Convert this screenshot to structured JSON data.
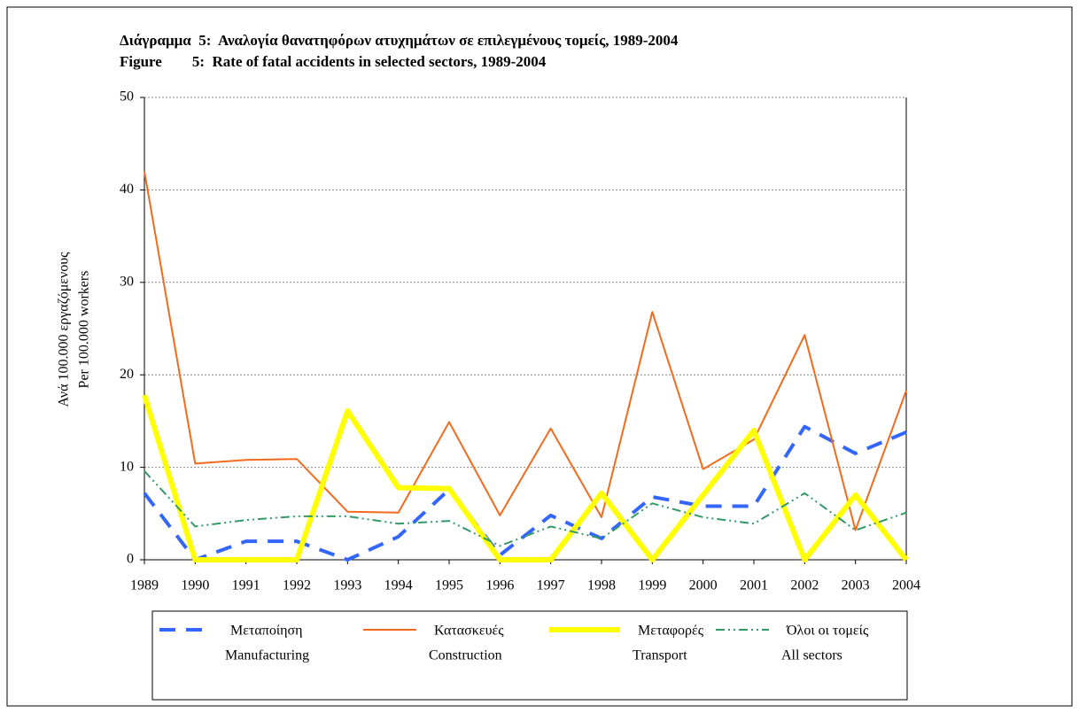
{
  "chart_data": {
    "type": "line",
    "title": "Διάγραμμα  5:  Αναλογία θανατηφόρων ατυχημάτων σε επιλεγμένους τομείς, 1989-2004",
    "subtitle": "Figure        5:  Rate of fatal accidents in selected sectors, 1989-2004",
    "y_label": [
      "Ανά 100.000 εργαζόμενους",
      "Per 100.000 workers"
    ],
    "categories": [
      "1989",
      "1990",
      "1991",
      "1992",
      "1993",
      "1994",
      "1995",
      "1996",
      "1997",
      "1998",
      "1999",
      "2000",
      "2001",
      "2002",
      "2003",
      "2004"
    ],
    "series": [
      {
        "name": "Μεταποίηση",
        "name_en": "Manufacturing",
        "color": "#3366ff",
        "style": "dash",
        "values": [
          7.2,
          0,
          2,
          2,
          0,
          2.5,
          7.6,
          0.5,
          4.8,
          2.3,
          6.8,
          5.8,
          5.8,
          14.4,
          11.5,
          13.8
        ]
      },
      {
        "name": "Κατασκευές",
        "name_en": "Construction",
        "color": "#f26b1d",
        "style": "solid",
        "values": [
          42,
          10.4,
          10.8,
          10.9,
          5.2,
          5.1,
          14.9,
          4.8,
          14.2,
          4.6,
          26.8,
          9.8,
          13,
          24.3,
          3.2,
          18.3
        ]
      },
      {
        "name": "Μεταφορές",
        "name_en": "Transport",
        "color": "#ffff00",
        "style": "thick",
        "values": [
          17.8,
          0,
          0,
          0,
          16.1,
          7.8,
          7.7,
          0,
          0,
          7.2,
          0,
          7,
          14,
          0,
          7,
          0
        ]
      },
      {
        "name": "Όλοι οι τομείς",
        "name_en": "All sectors",
        "color": "#339966",
        "style": "dashdot",
        "values": [
          9.6,
          3.6,
          4.3,
          4.7,
          4.7,
          3.9,
          4.2,
          1.5,
          3.6,
          2.3,
          6.1,
          4.6,
          3.9,
          7.2,
          3.2,
          5.1
        ]
      }
    ],
    "ylim": [
      0,
      50
    ],
    "yticks": [
      0,
      10,
      20,
      30,
      40,
      50
    ],
    "grid": true,
    "legend": "bottom"
  }
}
